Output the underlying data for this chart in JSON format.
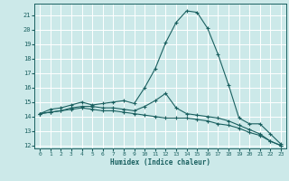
{
  "xlabel": "Humidex (Indice chaleur)",
  "bg_color": "#cce9e9",
  "grid_color": "#ffffff",
  "line_color": "#1a6060",
  "x_ticks": [
    0,
    1,
    2,
    3,
    4,
    5,
    6,
    7,
    8,
    9,
    10,
    11,
    12,
    13,
    14,
    15,
    16,
    17,
    18,
    19,
    20,
    21,
    22,
    23
  ],
  "xlim": [
    -0.5,
    23.5
  ],
  "ylim": [
    11.8,
    21.8
  ],
  "yticks": [
    12,
    13,
    14,
    15,
    16,
    17,
    18,
    19,
    20,
    21
  ],
  "curve1_x": [
    0,
    1,
    2,
    3,
    4,
    5,
    6,
    7,
    8,
    9,
    10,
    11,
    12,
    13,
    14,
    15,
    16,
    17,
    18,
    19,
    20,
    21,
    22,
    23
  ],
  "curve1_y": [
    14.2,
    14.5,
    14.6,
    14.8,
    15.0,
    14.8,
    14.9,
    15.0,
    15.1,
    14.9,
    16.0,
    17.3,
    19.1,
    20.5,
    21.3,
    21.2,
    20.1,
    18.3,
    16.2,
    13.9,
    13.5,
    13.5,
    12.8,
    12.1
  ],
  "curve2_x": [
    0,
    1,
    2,
    3,
    4,
    5,
    6,
    7,
    8,
    9,
    10,
    11,
    12,
    13,
    14,
    15,
    16,
    17,
    18,
    19,
    20,
    21,
    22,
    23
  ],
  "curve2_y": [
    14.2,
    14.3,
    14.4,
    14.5,
    14.6,
    14.5,
    14.4,
    14.4,
    14.3,
    14.2,
    14.1,
    14.0,
    13.9,
    13.9,
    13.9,
    13.8,
    13.7,
    13.5,
    13.4,
    13.2,
    12.9,
    12.7,
    12.3,
    12.0
  ],
  "curve3_x": [
    0,
    1,
    2,
    3,
    4,
    5,
    6,
    7,
    8,
    9,
    10,
    11,
    12,
    13,
    14,
    15,
    16,
    17,
    18,
    19,
    20,
    21,
    22,
    23
  ],
  "curve3_y": [
    14.2,
    14.3,
    14.4,
    14.6,
    14.7,
    14.7,
    14.6,
    14.6,
    14.5,
    14.4,
    14.7,
    15.1,
    15.6,
    14.6,
    14.2,
    14.1,
    14.0,
    13.9,
    13.7,
    13.4,
    13.1,
    12.8,
    12.3,
    12.0
  ],
  "marker_x1": [
    0,
    1,
    2,
    3,
    4,
    5,
    6,
    7,
    8,
    9,
    10,
    11,
    12,
    13,
    14,
    15,
    16,
    17,
    18,
    19,
    20,
    21,
    22,
    23
  ],
  "marker_x2": [
    0,
    1,
    2,
    3,
    4,
    5,
    6,
    7,
    8,
    9,
    10,
    11,
    12,
    13,
    14,
    15,
    16,
    17,
    18,
    19,
    20,
    21,
    22,
    23
  ],
  "marker_x3": [
    0,
    1,
    2,
    3,
    4,
    5,
    6,
    7,
    8,
    9,
    10,
    11,
    12,
    13,
    14,
    15,
    16,
    17,
    18,
    19,
    20,
    21,
    22,
    23
  ]
}
